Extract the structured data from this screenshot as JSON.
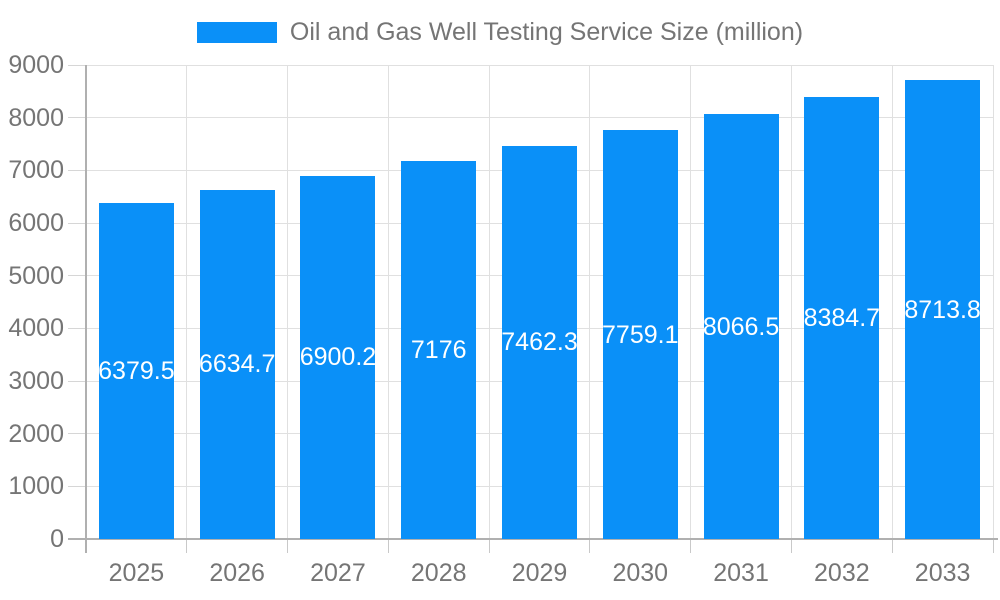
{
  "chart_data": {
    "type": "bar",
    "title": "",
    "legend": "Oil and Gas Well Testing Service Size (million)",
    "legend_position": "top-center",
    "categories": [
      "2025",
      "2026",
      "2027",
      "2028",
      "2029",
      "2030",
      "2031",
      "2032",
      "2033"
    ],
    "series": [
      {
        "name": "Oil and Gas Well Testing Service Size (million)",
        "values": [
          6379.5,
          6634.7,
          6900.2,
          7176,
          7462.3,
          7759.1,
          8066.5,
          8384.7,
          8713.8
        ]
      }
    ],
    "xlabel": "",
    "ylabel": "",
    "ylim": [
      0,
      9000
    ],
    "yticks": [
      0,
      1000,
      2000,
      3000,
      4000,
      5000,
      6000,
      7000,
      8000,
      9000
    ],
    "grid": true,
    "value_labels_inside_bars": true,
    "colors": {
      "bar": "#0a90f8",
      "axis_text": "#757575",
      "legend_text": "#757575",
      "gridline": "#e0e0e0",
      "axis_line": "#b0b0b0",
      "value_label": "#ffffff",
      "background": "#ffffff"
    }
  }
}
